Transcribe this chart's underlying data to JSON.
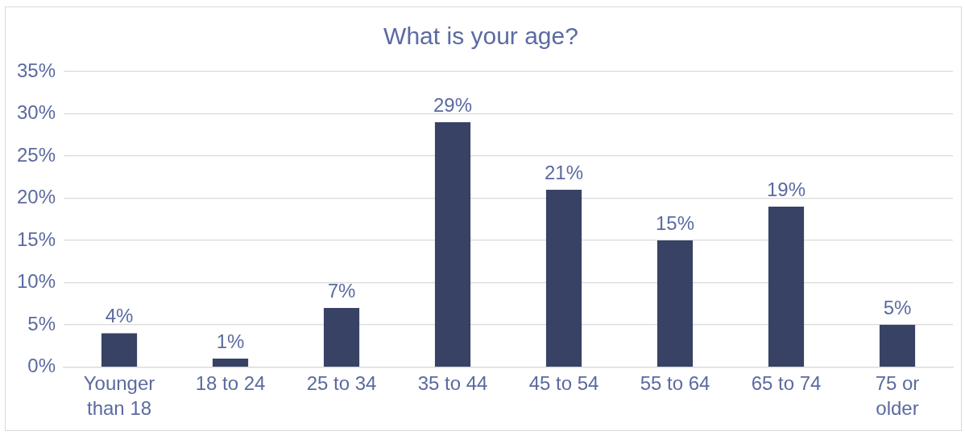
{
  "chart_data": {
    "type": "bar",
    "title": "What is your age?",
    "categories": [
      "Younger than 18",
      "18 to 24",
      "25 to 34",
      "35 to 44",
      "45 to 54",
      "55 to 64",
      "65 to 74",
      "75 or older"
    ],
    "values": [
      4,
      1,
      7,
      29,
      21,
      15,
      19,
      5
    ],
    "value_labels": [
      "4%",
      "1%",
      "7%",
      "29%",
      "21%",
      "15%",
      "19%",
      "5%"
    ],
    "color": "#374265",
    "ylim": [
      0,
      35
    ],
    "yticks": [
      {
        "value": 0,
        "label": "0%"
      },
      {
        "value": 5,
        "label": "5%"
      },
      {
        "value": 10,
        "label": "10%"
      },
      {
        "value": 15,
        "label": "15%"
      },
      {
        "value": 20,
        "label": "20%"
      },
      {
        "value": 25,
        "label": "25%"
      },
      {
        "value": 30,
        "label": "30%"
      },
      {
        "value": 35,
        "label": "35%"
      }
    ],
    "grid": "y",
    "legend": false
  }
}
